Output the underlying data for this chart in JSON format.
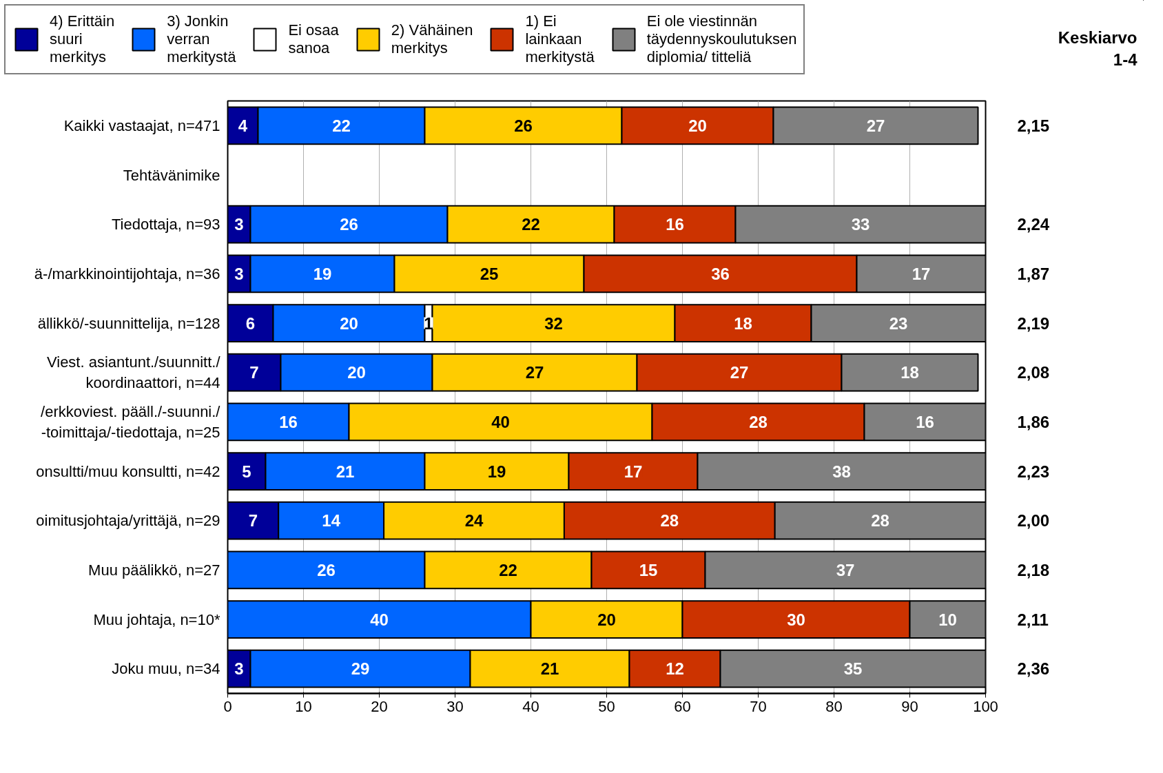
{
  "chart_data": {
    "type": "bar",
    "orientation": "horizontal",
    "stacked": true,
    "grid": "x",
    "legend": "top",
    "categories": [
      "Kaikki vastaajat, n=471",
      "Tehtävänimike",
      "Tiedottaja, n=93",
      "ä-/markkinointijohtaja, n=36",
      "ällikkö/-suunnittelija, n=128",
      "Viest. asiantunt./suunnitt./\nkoordinaattori, n=44",
      "/erkkoviest. pääll./-suunni./\n-toimittaja/-tiedottaja, n=25",
      "onsultti/muu konsultti, n=42",
      "oimitusjohtaja/yrittäjä, n=29",
      "Muu päälikkö, n=27",
      "Muu johtaja, n=10*",
      "Joku muu, n=34"
    ],
    "xlim": [
      0,
      100
    ],
    "xticks": [
      0,
      10,
      20,
      30,
      40,
      50,
      60,
      70,
      80,
      90,
      100
    ],
    "series": [
      {
        "name": "4) Erittäin\nsuuri\nmerkitys",
        "color": "#000099",
        "values": [
          4,
          null,
          3,
          3,
          6,
          7,
          null,
          5,
          6.7,
          null,
          null,
          3
        ],
        "value_labels": [
          "4",
          null,
          "3",
          "3",
          "6",
          "7",
          null,
          "5",
          "7",
          null,
          null,
          "3"
        ]
      },
      {
        "name": "3) Jonkin\nverran\nmerkitystä",
        "color": "#0066ff",
        "values": [
          22,
          null,
          26,
          19,
          20,
          20,
          16,
          21,
          13.9,
          26,
          40,
          29
        ],
        "value_labels": [
          "22",
          null,
          "26",
          "19",
          "20",
          "20",
          "16",
          "21",
          "14",
          "26",
          "40",
          "29"
        ]
      },
      {
        "name": "Ei osaa\nsanoa",
        "color": "#ffffff",
        "values": [
          null,
          null,
          null,
          null,
          1,
          null,
          null,
          null,
          null,
          null,
          null,
          null
        ],
        "value_labels": [
          null,
          null,
          null,
          null,
          "1",
          null,
          null,
          null,
          null,
          null,
          null,
          null
        ]
      },
      {
        "name": "2) Vähäinen\nmerkitys",
        "color": "#ffcc00",
        "values": [
          26,
          null,
          22,
          25,
          32,
          27,
          40,
          19,
          23.8,
          22,
          20,
          21
        ],
        "value_labels": [
          "26",
          null,
          "22",
          "25",
          "32",
          "27",
          "40",
          "19",
          "24",
          "22",
          "20",
          "21"
        ]
      },
      {
        "name": "1) Ei\nlainkaan\nmerkitystä",
        "color": "#cc3300",
        "values": [
          20,
          null,
          16,
          36,
          18,
          27,
          28,
          17,
          27.8,
          15,
          30,
          12
        ],
        "value_labels": [
          "20",
          null,
          "16",
          "36",
          "18",
          "27",
          "28",
          "17",
          "28",
          "15",
          "30",
          "12"
        ]
      },
      {
        "name": "Ei ole viestinnän\ntäydennyskoulutuksen\ndiplomia/ titteliä",
        "color": "#808080",
        "values": [
          27,
          null,
          33,
          17,
          23,
          18,
          16,
          38,
          27.8,
          37,
          10,
          35
        ],
        "value_labels": [
          "27",
          null,
          "33",
          "17",
          "23",
          "18",
          "16",
          "38",
          "28",
          "37",
          "10",
          "35"
        ]
      }
    ],
    "annotations": [
      "Keskiarvo\n1-4",
      "2,15",
      "2,24",
      "1,87",
      "2,19",
      "2,08",
      "1,86",
      "2,23",
      "2,00",
      "2,18",
      "2,11",
      "2,36"
    ]
  }
}
